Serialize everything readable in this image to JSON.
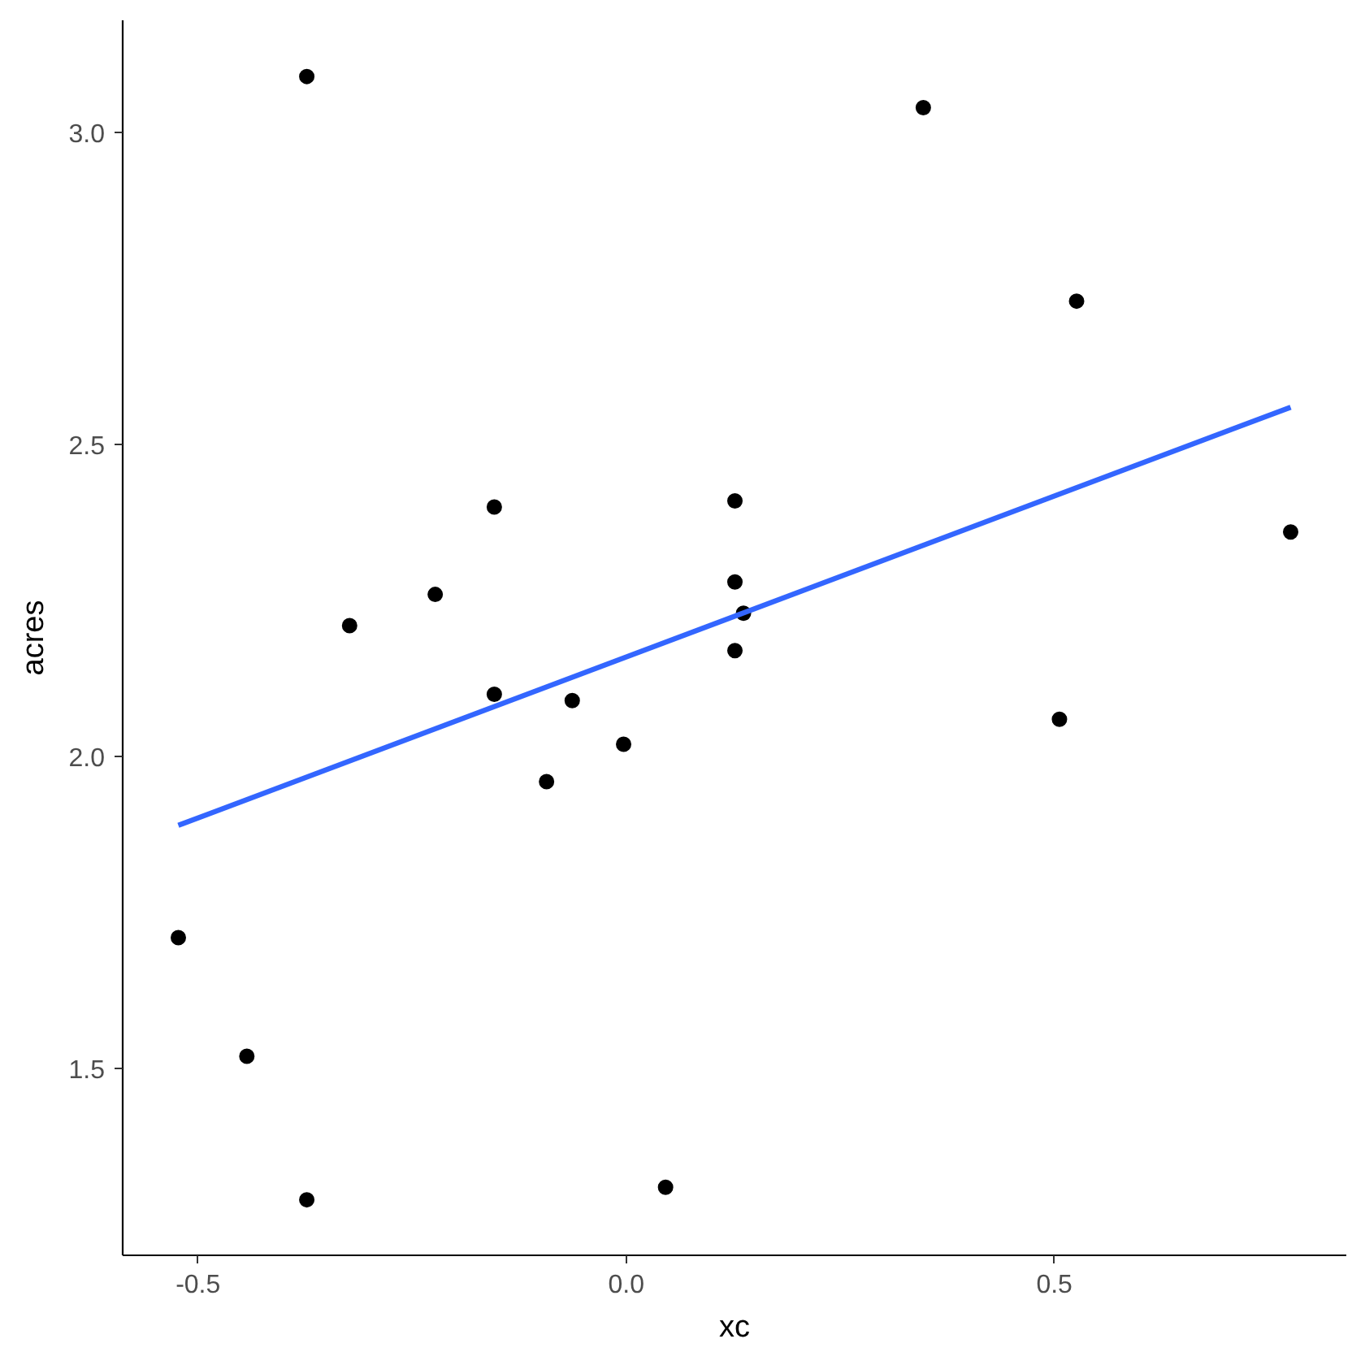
{
  "chart_data": {
    "type": "scatter",
    "xlabel": "xc",
    "ylabel": "acres",
    "xlim": [
      -0.588,
      0.841
    ],
    "ylim": [
      1.201,
      3.18
    ],
    "xticks": [
      -0.5,
      {
        "value": 0,
        "label": "0.0"
      },
      0.5
    ],
    "yticks": [
      1.5,
      {
        "value": 2,
        "label": "2.0"
      },
      2.5,
      {
        "value": 3,
        "label": "3.0"
      }
    ],
    "grid": false,
    "marker": "circle",
    "series": [
      {
        "color": "#000000",
        "x": [
          -0.373,
          -0.154,
          -0.223,
          -0.323,
          0.347,
          0.526,
          0.776,
          0.127,
          0.127,
          0.137,
          0.127,
          -0.154,
          -0.063,
          -0.003,
          -0.093,
          -0.523,
          -0.443,
          -0.373,
          0.046,
          0.506
        ],
        "values": [
          3.09,
          2.4,
          2.26,
          2.21,
          3.04,
          2.73,
          2.36,
          2.41,
          2.28,
          2.23,
          2.17,
          2.1,
          2.09,
          2.02,
          1.96,
          1.71,
          1.52,
          1.29,
          1.31,
          2.06
        ]
      },
      {
        "type": "line",
        "color": "#3366ff",
        "marker": "none",
        "line_style": "solid",
        "x": [
          -0.523,
          0.776
        ],
        "values": [
          1.89,
          2.56
        ]
      }
    ]
  }
}
